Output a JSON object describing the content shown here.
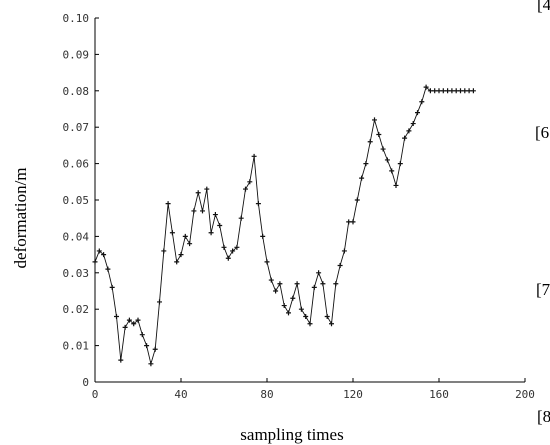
{
  "chart_data": {
    "type": "line",
    "xlabel": "sampling times",
    "ylabel": "deformation/m",
    "xlim": [
      0,
      200
    ],
    "ylim": [
      0,
      0.1
    ],
    "x_ticks": [
      "0",
      "40",
      "80",
      "120",
      "160",
      "200"
    ],
    "y_ticks": [
      "0",
      "0.01",
      "0.02",
      "0.03",
      "0.04",
      "0.05",
      "0.06",
      "0.07",
      "0.08",
      "0.09",
      "0.10"
    ],
    "grid": false,
    "series": [
      {
        "marker": "plus",
        "color": "#111111",
        "x": [
          0,
          2,
          4,
          6,
          8,
          10,
          12,
          14,
          16,
          18,
          20,
          22,
          24,
          26,
          28,
          30,
          32,
          34,
          36,
          38,
          40,
          42,
          44,
          46,
          48,
          50,
          52,
          54,
          56,
          58,
          60,
          62,
          64,
          66,
          68,
          70,
          72,
          74,
          76,
          78,
          80,
          82,
          84,
          86,
          88,
          90,
          92,
          94,
          96,
          98,
          100,
          102,
          104,
          106,
          108,
          110,
          112,
          114,
          116,
          118,
          120,
          122,
          124,
          126,
          128,
          130,
          132,
          134,
          136,
          138,
          140,
          142,
          144,
          146,
          148,
          150,
          152,
          154,
          156,
          158,
          160,
          162,
          164,
          166,
          168,
          170,
          172,
          174,
          176
        ],
        "y": [
          0.033,
          0.036,
          0.035,
          0.031,
          0.026,
          0.018,
          0.006,
          0.015,
          0.017,
          0.016,
          0.017,
          0.013,
          0.01,
          0.005,
          0.009,
          0.022,
          0.036,
          0.049,
          0.041,
          0.033,
          0.035,
          0.04,
          0.038,
          0.047,
          0.052,
          0.047,
          0.053,
          0.041,
          0.046,
          0.043,
          0.037,
          0.034,
          0.036,
          0.037,
          0.045,
          0.053,
          0.055,
          0.062,
          0.049,
          0.04,
          0.033,
          0.028,
          0.025,
          0.027,
          0.021,
          0.019,
          0.023,
          0.027,
          0.02,
          0.018,
          0.016,
          0.026,
          0.03,
          0.027,
          0.018,
          0.016,
          0.027,
          0.032,
          0.036,
          0.044,
          0.044,
          0.05,
          0.056,
          0.06,
          0.066,
          0.072,
          0.068,
          0.064,
          0.061,
          0.058,
          0.054,
          0.06,
          0.067,
          0.069,
          0.071,
          0.074,
          0.077,
          0.081,
          0.08,
          0.08,
          0.08,
          0.08,
          0.08,
          0.08,
          0.08,
          0.08,
          0.08,
          0.08,
          0.08
        ]
      }
    ]
  },
  "side_labels": [
    "[4",
    "[6",
    "[7",
    "[8"
  ]
}
